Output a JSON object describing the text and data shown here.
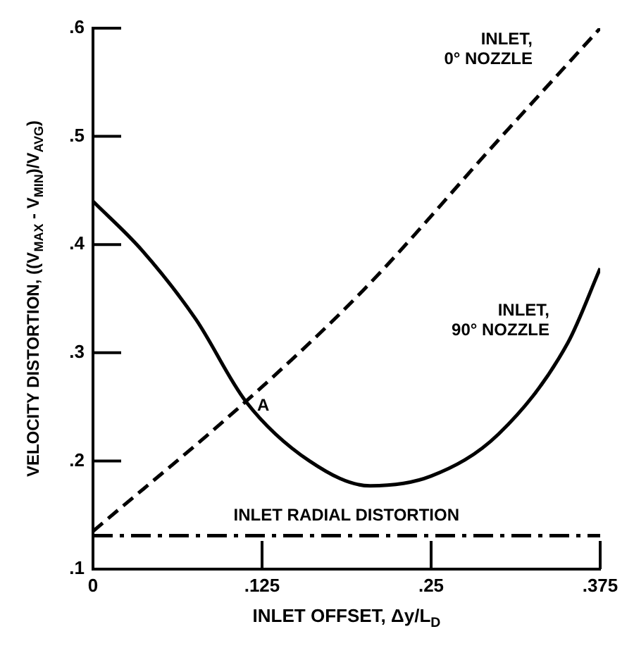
{
  "chart_data": {
    "type": "line",
    "xlabel": "INLET OFFSET, Δy/L$_{D}$",
    "ylabel": "VELOCITY DISTORTION, ((V$_{MAX}$ - V$_{MIN}$)/V$_{AVG}$)",
    "xlim": [
      0,
      0.375
    ],
    "xticks": [
      0,
      {
        "value": 0.125,
        "label": ".125"
      },
      {
        "value": 0.25,
        "label": ".25"
      },
      {
        "value": 0.375,
        "label": ".375"
      }
    ],
    "ylim": [
      0.1,
      0.6
    ],
    "yticks": [
      {
        "value": 0.1,
        "label": ".1"
      },
      {
        "value": 0.2,
        "label": ".2"
      },
      {
        "value": 0.3,
        "label": ".3"
      },
      {
        "value": 0.4,
        "label": ".4"
      },
      {
        "value": 0.5,
        "label": ".5"
      },
      {
        "value": 0.6,
        "label": ".6"
      }
    ],
    "grid": false,
    "legend": false,
    "marker": "none",
    "series": [
      {
        "name": "INLET, 0° NOZZLE",
        "color": "#000000",
        "line_style": "dashed",
        "x": [
          0,
          0.113,
          0.2,
          0.3,
          0.375
        ],
        "values": [
          0.135,
          0.255,
          0.358,
          0.497,
          0.6
        ]
      },
      {
        "name": "INLET, 90° NOZZLE",
        "color": "#000000",
        "line_style": "solid",
        "x": [
          0,
          0.036,
          0.076,
          0.113,
          0.16,
          0.205,
          0.25,
          0.3,
          0.351,
          0.375
        ],
        "values": [
          0.44,
          0.395,
          0.331,
          0.255,
          0.2,
          0.177,
          0.186,
          0.225,
          0.309,
          0.378
        ]
      }
    ],
    "ref_lines": [
      {
        "axis": "y",
        "value": 0.131,
        "label": "INLET RADIAL DISTORTION",
        "line_style": "dashdot",
        "color": "#000000"
      }
    ],
    "annotations": [
      {
        "text": "A",
        "x": 0.113,
        "y": 0.255
      }
    ]
  }
}
